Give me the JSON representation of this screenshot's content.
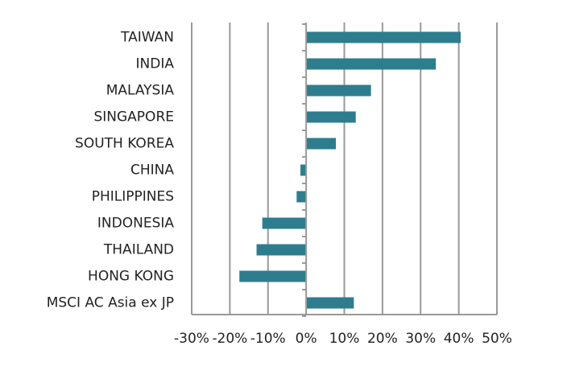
{
  "chart_data": {
    "type": "bar",
    "orientation": "horizontal",
    "categories": [
      "TAIWAN",
      "INDIA",
      "MALAYSIA",
      "SINGAPORE",
      "SOUTH KOREA",
      "CHINA",
      "PHILIPPINES",
      "INDONESIA",
      "THAILAND",
      "HONG KONG",
      "MSCI AC Asia ex JP"
    ],
    "values": [
      40.5,
      34,
      17,
      13,
      7.8,
      -1.5,
      -2.5,
      -11.5,
      -13,
      -17.5,
      12.5
    ],
    "value_unit": "%",
    "xlim": [
      -30,
      50
    ],
    "x_ticks": [
      -30,
      -20,
      -10,
      0,
      10,
      20,
      30,
      40,
      50
    ],
    "x_tick_labels": [
      "-30%",
      "-20%",
      "-10%",
      "0%",
      "10%",
      "20%",
      "30%",
      "40%",
      "50%"
    ],
    "grid": "vertical",
    "bar_color": "#2e7d8e",
    "grid_color": "#999999",
    "axis_color": "#999999"
  }
}
